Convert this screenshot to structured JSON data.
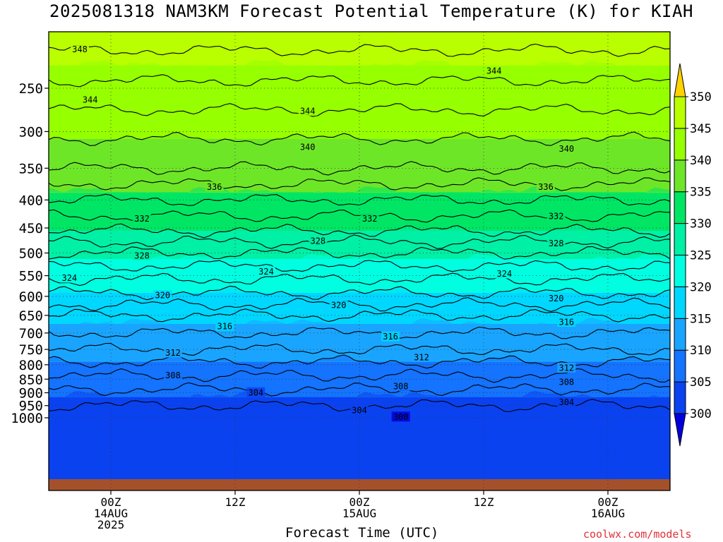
{
  "title": "2025081318 NAM3KM Forecast Potential Temperature (K) for KIAH",
  "xlabel": "Forecast Time (UTC)",
  "credit": "coolwx.com/models",
  "colors": {
    "levels": [
      "#0000dc",
      "#0a42f0",
      "#1473ff",
      "#19a5ff",
      "#00d7ff",
      "#00ffe1",
      "#00f0a5",
      "#00e664",
      "#6ee628",
      "#96ff00",
      "#b9ff00",
      "#d7ff00",
      "#ffff00",
      "#ffd200"
    ],
    "ground": "#a4512b"
  },
  "chart_data": {
    "type": "heatmap",
    "title": "2025081318 NAM3KM Forecast Potential Temperature (K) for KIAH",
    "xlabel": "Forecast Time (UTC)",
    "ylabel": "",
    "y_scale": "log",
    "ylim": [
      1000,
      200
    ],
    "y_ticks": [
      250,
      300,
      350,
      400,
      450,
      500,
      550,
      600,
      650,
      700,
      750,
      800,
      850,
      900,
      950,
      1000
    ],
    "x_ticks": [
      {
        "hour": 6,
        "lines": [
          "00Z",
          "14AUG",
          "2025"
        ]
      },
      {
        "hour": 18,
        "lines": [
          "12Z"
        ]
      },
      {
        "hour": 30,
        "lines": [
          "00Z",
          "15AUG"
        ]
      },
      {
        "hour": 42,
        "lines": [
          "12Z"
        ]
      },
      {
        "hour": 54,
        "lines": [
          "00Z",
          "16AUG"
        ]
      }
    ],
    "xlim_hours": [
      0,
      60
    ],
    "colorbar": {
      "min": 300,
      "max": 350,
      "step": 5,
      "labels": [
        "300",
        "305",
        "310",
        "315",
        "320",
        "325",
        "330",
        "335",
        "340",
        "345",
        "350"
      ]
    },
    "profile": [
      {
        "p": 1000,
        "theta": 303
      },
      {
        "p": 950,
        "theta": 304
      },
      {
        "p": 900,
        "theta": 305.5
      },
      {
        "p": 850,
        "theta": 307.5
      },
      {
        "p": 800,
        "theta": 309.5
      },
      {
        "p": 750,
        "theta": 312
      },
      {
        "p": 700,
        "theta": 314
      },
      {
        "p": 650,
        "theta": 316
      },
      {
        "p": 600,
        "theta": 319.5
      },
      {
        "p": 550,
        "theta": 322.5
      },
      {
        "p": 500,
        "theta": 326
      },
      {
        "p": 450,
        "theta": 330.5
      },
      {
        "p": 400,
        "theta": 334
      },
      {
        "p": 350,
        "theta": 338
      },
      {
        "p": 300,
        "theta": 340.5
      },
      {
        "p": 250,
        "theta": 343.5
      },
      {
        "p": 200,
        "theta": 347
      }
    ],
    "contour_labels": [
      {
        "text": "348",
        "hour": 3,
        "p": 212
      },
      {
        "text": "344",
        "hour": 4,
        "p": 262
      },
      {
        "text": "344",
        "hour": 25,
        "p": 275
      },
      {
        "text": "344",
        "hour": 43,
        "p": 232
      },
      {
        "text": "340",
        "hour": 25,
        "p": 320
      },
      {
        "text": "340",
        "hour": 50,
        "p": 322
      },
      {
        "text": "336",
        "hour": 16,
        "p": 378
      },
      {
        "text": "336",
        "hour": 48,
        "p": 378
      },
      {
        "text": "332",
        "hour": 9,
        "p": 432
      },
      {
        "text": "332",
        "hour": 31,
        "p": 432
      },
      {
        "text": "332",
        "hour": 49,
        "p": 428
      },
      {
        "text": "328",
        "hour": 9,
        "p": 505
      },
      {
        "text": "328",
        "hour": 26,
        "p": 475
      },
      {
        "text": "328",
        "hour": 49,
        "p": 480
      },
      {
        "text": "324",
        "hour": 2,
        "p": 555
      },
      {
        "text": "324",
        "hour": 21,
        "p": 540
      },
      {
        "text": "324",
        "hour": 44,
        "p": 545
      },
      {
        "text": "320",
        "hour": 11,
        "p": 597
      },
      {
        "text": "320",
        "hour": 28,
        "p": 622
      },
      {
        "text": "320",
        "hour": 49,
        "p": 605
      },
      {
        "text": "316",
        "hour": 17,
        "p": 680
      },
      {
        "text": "316",
        "hour": 33,
        "p": 710
      },
      {
        "text": "316",
        "hour": 50,
        "p": 668
      },
      {
        "text": "312",
        "hour": 12,
        "p": 760
      },
      {
        "text": "312",
        "hour": 36,
        "p": 775
      },
      {
        "text": "312",
        "hour": 50,
        "p": 810
      },
      {
        "text": "308",
        "hour": 12,
        "p": 835
      },
      {
        "text": "308",
        "hour": 34,
        "p": 875
      },
      {
        "text": "308",
        "hour": 50,
        "p": 860
      },
      {
        "text": "304",
        "hour": 20,
        "p": 898
      },
      {
        "text": "304",
        "hour": 30,
        "p": 968
      },
      {
        "text": "304",
        "hour": 50,
        "p": 935
      },
      {
        "text": "300",
        "hour": 34,
        "p": 995
      }
    ]
  }
}
